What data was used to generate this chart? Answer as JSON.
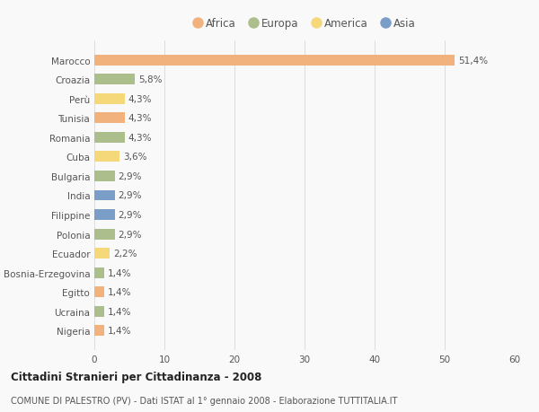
{
  "countries": [
    "Nigeria",
    "Ucraina",
    "Egitto",
    "Bosnia-Erzegovina",
    "Ecuador",
    "Polonia",
    "Filippine",
    "India",
    "Bulgaria",
    "Cuba",
    "Romania",
    "Tunisia",
    "Perù",
    "Croazia",
    "Marocco"
  ],
  "values": [
    1.4,
    1.4,
    1.4,
    1.4,
    2.2,
    2.9,
    2.9,
    2.9,
    2.9,
    3.6,
    4.3,
    4.3,
    4.3,
    5.8,
    51.4
  ],
  "continents": [
    "Africa",
    "Europa",
    "Africa",
    "Europa",
    "America",
    "Europa",
    "Asia",
    "Asia",
    "Europa",
    "America",
    "Europa",
    "Africa",
    "America",
    "Europa",
    "Africa"
  ],
  "colors": {
    "Africa": "#F2B27E",
    "Europa": "#ABBE8C",
    "America": "#F5D87A",
    "Asia": "#7B9EC9"
  },
  "xlim": [
    0,
    60
  ],
  "xticks": [
    0,
    10,
    20,
    30,
    40,
    50,
    60
  ],
  "title": "Cittadini Stranieri per Cittadinanza - 2008",
  "subtitle": "COMUNE DI PALESTRO (PV) - Dati ISTAT al 1° gennaio 2008 - Elaborazione TUTTITALIA.IT",
  "bg_color": "#f9f9f9",
  "bar_height": 0.55,
  "label_fontsize": 7.5,
  "tick_fontsize": 7.5,
  "legend_order": [
    "Africa",
    "Europa",
    "America",
    "Asia"
  ]
}
